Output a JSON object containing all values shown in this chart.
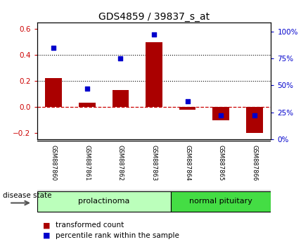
{
  "title": "GDS4859 / 39837_s_at",
  "samples": [
    "GSM887860",
    "GSM887861",
    "GSM887862",
    "GSM887863",
    "GSM887864",
    "GSM887865",
    "GSM887866"
  ],
  "transformed_count": [
    0.22,
    0.03,
    0.13,
    0.5,
    -0.02,
    -0.1,
    -0.2
  ],
  "percentile_rank": [
    85,
    47,
    75,
    97,
    35,
    22,
    22
  ],
  "left_ylim": [
    -0.25,
    0.65
  ],
  "right_ylim": [
    0,
    108.33
  ],
  "left_yticks": [
    -0.2,
    0.0,
    0.2,
    0.4,
    0.6
  ],
  "right_yticks": [
    0,
    25,
    50,
    75,
    100
  ],
  "right_yticklabels": [
    "0%",
    "25%",
    "50%",
    "75%",
    "100%"
  ],
  "bar_color": "#aa0000",
  "dot_color": "#0000cc",
  "groups": [
    {
      "label": "prolactinoma",
      "start": 0,
      "end": 3,
      "color": "#bbffbb"
    },
    {
      "label": "normal pituitary",
      "start": 4,
      "end": 6,
      "color": "#44dd44"
    }
  ],
  "disease_state_label": "disease state",
  "legend_bar_label": "transformed count",
  "legend_dot_label": "percentile rank within the sample",
  "background_color": "#ffffff",
  "tick_label_area_bg": "#cccccc",
  "bar_width": 0.5
}
